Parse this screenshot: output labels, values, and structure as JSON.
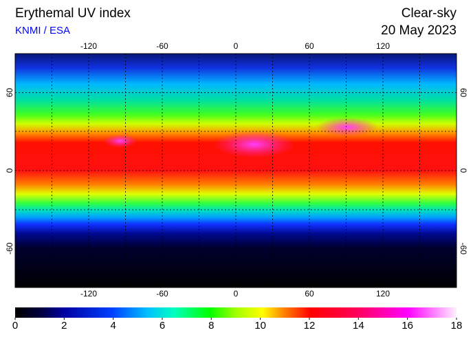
{
  "header": {
    "title": "Erythemal UV index",
    "source": "KNMI / ESA",
    "condition": "Clear-sky",
    "date": "20 May 2023"
  },
  "map": {
    "lon_ticks": [
      -120,
      -60,
      0,
      60,
      120
    ],
    "lat_ticks": [
      60,
      0,
      -60
    ],
    "xlim": [
      -180,
      180
    ],
    "ylim": [
      -90,
      90
    ]
  },
  "colorbar": {
    "ticks": [
      0,
      2,
      4,
      6,
      8,
      10,
      12,
      14,
      16,
      18
    ]
  }
}
